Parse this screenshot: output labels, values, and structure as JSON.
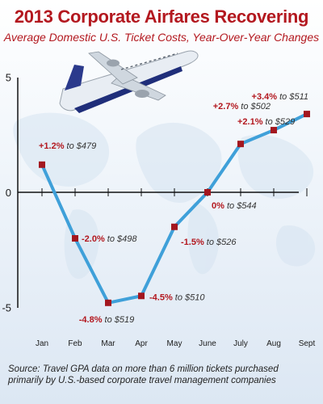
{
  "title": "2013 Corporate Airfares Recovering",
  "subtitle": "Average Domestic U.S. Ticket Costs, Year-Over-Year Changes",
  "source": "Source: Travel GPA data on more than 6 million tickets purchased primarily by U.S.-based corporate travel management companies",
  "colors": {
    "line": "#3fa0d9",
    "marker": "#a3171f",
    "pct": "#b3181f"
  },
  "icons": [
    "airplane-icon",
    "world-map-background"
  ],
  "chart_data": {
    "type": "line",
    "title": "2013 Corporate Airfares Recovering",
    "subtitle": "Average Domestic U.S. Ticket Costs, Year-Over-Year Changes",
    "categories": [
      "Jan",
      "Feb",
      "Mar",
      "Apr",
      "May",
      "June",
      "July",
      "Aug",
      "Sept"
    ],
    "values": [
      1.2,
      -2.0,
      -4.8,
      -4.5,
      -1.5,
      0,
      2.1,
      2.7,
      3.4
    ],
    "ylim": [
      -5,
      5
    ],
    "yticks": [
      "5",
      "0",
      "-5"
    ],
    "labels": [
      {
        "pct": "+1.2%",
        "rest": " to $479"
      },
      {
        "pct": "-2.0%",
        "rest": " to $498"
      },
      {
        "pct": "-4.8%",
        "rest": " to $519"
      },
      {
        "pct": "-4.5%",
        "rest": " to $510"
      },
      {
        "pct": "-1.5%",
        "rest": " to $526"
      },
      {
        "pct": "0%",
        "rest": " to $544"
      },
      {
        "pct": "+2.1%",
        "rest": " to $529"
      },
      {
        "pct": "+2.7%",
        "rest": " to $502"
      },
      {
        "pct": "+3.4%",
        "rest": " to $511"
      }
    ],
    "grid": false,
    "legend": "none"
  }
}
